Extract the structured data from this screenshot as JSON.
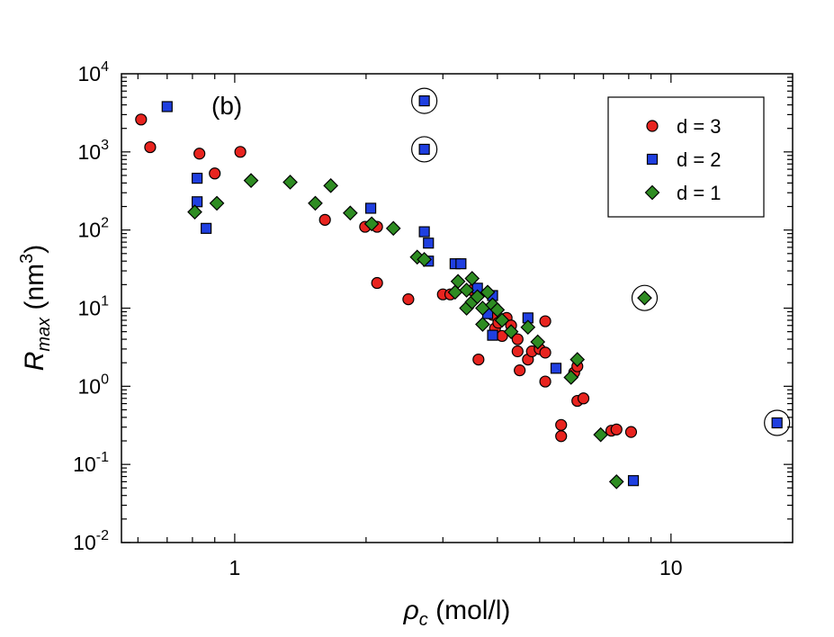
{
  "chart_data": {
    "type": "scatter",
    "panel_label": "(b)",
    "x_scale": "log",
    "y_scale": "log",
    "xlim": [
      0.55,
      19
    ],
    "ylim": [
      0.01,
      10000
    ],
    "xlabel": {
      "main": "ρ",
      "sub": "c",
      "rest": " (mol/l)"
    },
    "ylabel": {
      "main": "R",
      "sub": "max",
      "pre": " (nm",
      "sup": "3",
      "post": ")"
    },
    "x_ticks": [
      {
        "value": 1,
        "label": "1"
      },
      {
        "value": 10,
        "label": "10"
      }
    ],
    "y_ticks": [
      {
        "value": 0.01,
        "base": "10",
        "exp": "-2"
      },
      {
        "value": 0.1,
        "base": "10",
        "exp": "-1"
      },
      {
        "value": 1,
        "base": "10",
        "exp": "0"
      },
      {
        "value": 10,
        "base": "10",
        "exp": "1"
      },
      {
        "value": 100,
        "base": "10",
        "exp": "2"
      },
      {
        "value": 1000,
        "base": "10",
        "exp": "3"
      },
      {
        "value": 10000,
        "base": "10",
        "exp": "4"
      }
    ],
    "legend_position": "top-right",
    "series": [
      {
        "name": "d = 3",
        "marker": "circle",
        "color": "#e8241f",
        "points": [
          [
            0.61,
            2600
          ],
          [
            0.64,
            1150
          ],
          [
            0.83,
            950
          ],
          [
            0.9,
            530
          ],
          [
            1.03,
            1000
          ],
          [
            1.61,
            135
          ],
          [
            1.99,
            110
          ],
          [
            2.12,
            110
          ],
          [
            2.12,
            21
          ],
          [
            2.5,
            13
          ],
          [
            3.0,
            15
          ],
          [
            3.12,
            15
          ],
          [
            3.5,
            17
          ],
          [
            3.62,
            2.2
          ],
          [
            3.9,
            8.2
          ],
          [
            3.95,
            5.5
          ],
          [
            4.02,
            6.5
          ],
          [
            4.1,
            4.4
          ],
          [
            4.2,
            7.5
          ],
          [
            4.3,
            6.0
          ],
          [
            4.45,
            4.0
          ],
          [
            4.45,
            2.8
          ],
          [
            4.5,
            1.6
          ],
          [
            4.7,
            2.2
          ],
          [
            4.8,
            2.8
          ],
          [
            5.0,
            3.0
          ],
          [
            5.15,
            6.8
          ],
          [
            5.15,
            2.7
          ],
          [
            5.15,
            1.15
          ],
          [
            5.6,
            0.32
          ],
          [
            5.6,
            0.23
          ],
          [
            6.0,
            1.5
          ],
          [
            6.1,
            1.8
          ],
          [
            6.1,
            0.65
          ],
          [
            6.3,
            0.7
          ],
          [
            7.3,
            0.27
          ],
          [
            7.5,
            0.28
          ],
          [
            8.1,
            0.26
          ]
        ]
      },
      {
        "name": "d = 2",
        "marker": "square",
        "color": "#1f3fe0",
        "points": [
          [
            0.7,
            3800
          ],
          [
            0.82,
            460
          ],
          [
            0.82,
            230
          ],
          [
            0.86,
            105
          ],
          [
            2.05,
            190
          ],
          [
            2.72,
            4500
          ],
          [
            2.72,
            1080
          ],
          [
            2.72,
            95
          ],
          [
            2.78,
            68
          ],
          [
            2.78,
            40
          ],
          [
            3.2,
            37
          ],
          [
            3.3,
            37
          ],
          [
            3.6,
            18
          ],
          [
            3.8,
            8.5
          ],
          [
            3.9,
            14.5
          ],
          [
            3.9,
            4.5
          ],
          [
            4.7,
            7.5
          ],
          [
            5.45,
            1.7
          ],
          [
            8.2,
            0.062
          ],
          [
            17.5,
            0.34
          ]
        ]
      },
      {
        "name": "d = 1",
        "marker": "diamond",
        "color": "#2e8c22",
        "points": [
          [
            0.81,
            170
          ],
          [
            0.91,
            220
          ],
          [
            1.09,
            430
          ],
          [
            1.34,
            410
          ],
          [
            1.53,
            220
          ],
          [
            1.66,
            370
          ],
          [
            1.84,
            165
          ],
          [
            2.06,
            120
          ],
          [
            2.31,
            105
          ],
          [
            2.62,
            45
          ],
          [
            2.72,
            42
          ],
          [
            3.2,
            16
          ],
          [
            3.25,
            22
          ],
          [
            3.4,
            10
          ],
          [
            3.4,
            17
          ],
          [
            3.5,
            24
          ],
          [
            3.5,
            12
          ],
          [
            3.6,
            14
          ],
          [
            3.7,
            10
          ],
          [
            3.7,
            6.2
          ],
          [
            3.8,
            16
          ],
          [
            3.9,
            11
          ],
          [
            4.0,
            9.5
          ],
          [
            4.1,
            7.0
          ],
          [
            4.3,
            5.0
          ],
          [
            4.7,
            5.7
          ],
          [
            4.95,
            3.7
          ],
          [
            5.9,
            1.3
          ],
          [
            6.1,
            2.2
          ],
          [
            6.9,
            0.24
          ],
          [
            7.5,
            0.06
          ],
          [
            8.7,
            13.5
          ]
        ]
      }
    ],
    "highlighted_points": [
      [
        2.72,
        4500
      ],
      [
        2.72,
        1080
      ],
      [
        8.7,
        13.5
      ],
      [
        17.5,
        0.34
      ]
    ]
  }
}
